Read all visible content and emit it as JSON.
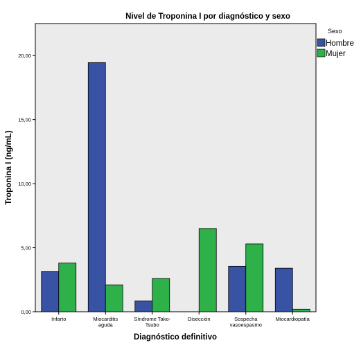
{
  "chart_data": {
    "type": "bar",
    "title": "Nivel de Troponina I por diagnóstico y sexo",
    "xlabel": "Diagnóstico definitivo",
    "ylabel": "Troponina I (ng/mL)",
    "ylim": [
      0,
      22.5
    ],
    "yticks": [
      0,
      5,
      10,
      15,
      20
    ],
    "ytick_labels": [
      "0,00",
      "5,00",
      "10,00",
      "15,00",
      "20,00"
    ],
    "categories": [
      [
        "Infarto"
      ],
      [
        "Miocarditis",
        "aguda"
      ],
      [
        "Síndrome Tako-",
        "Tsubo"
      ],
      [
        "Disección"
      ],
      [
        "Sospecha",
        "vasoespasmo"
      ],
      [
        "Miocardiopatía"
      ]
    ],
    "series": [
      {
        "name": "Hombre",
        "color": "#3953a4",
        "values": [
          3.15,
          19.45,
          0.85,
          null,
          3.55,
          3.4
        ]
      },
      {
        "name": "Mujer",
        "color": "#2fb14a",
        "values": [
          3.8,
          2.1,
          2.6,
          6.5,
          5.3,
          0.2
        ]
      }
    ],
    "legend": {
      "title": "Sexo",
      "placement": "right-top"
    },
    "plot_background": "#ebebeb",
    "grid": false
  }
}
